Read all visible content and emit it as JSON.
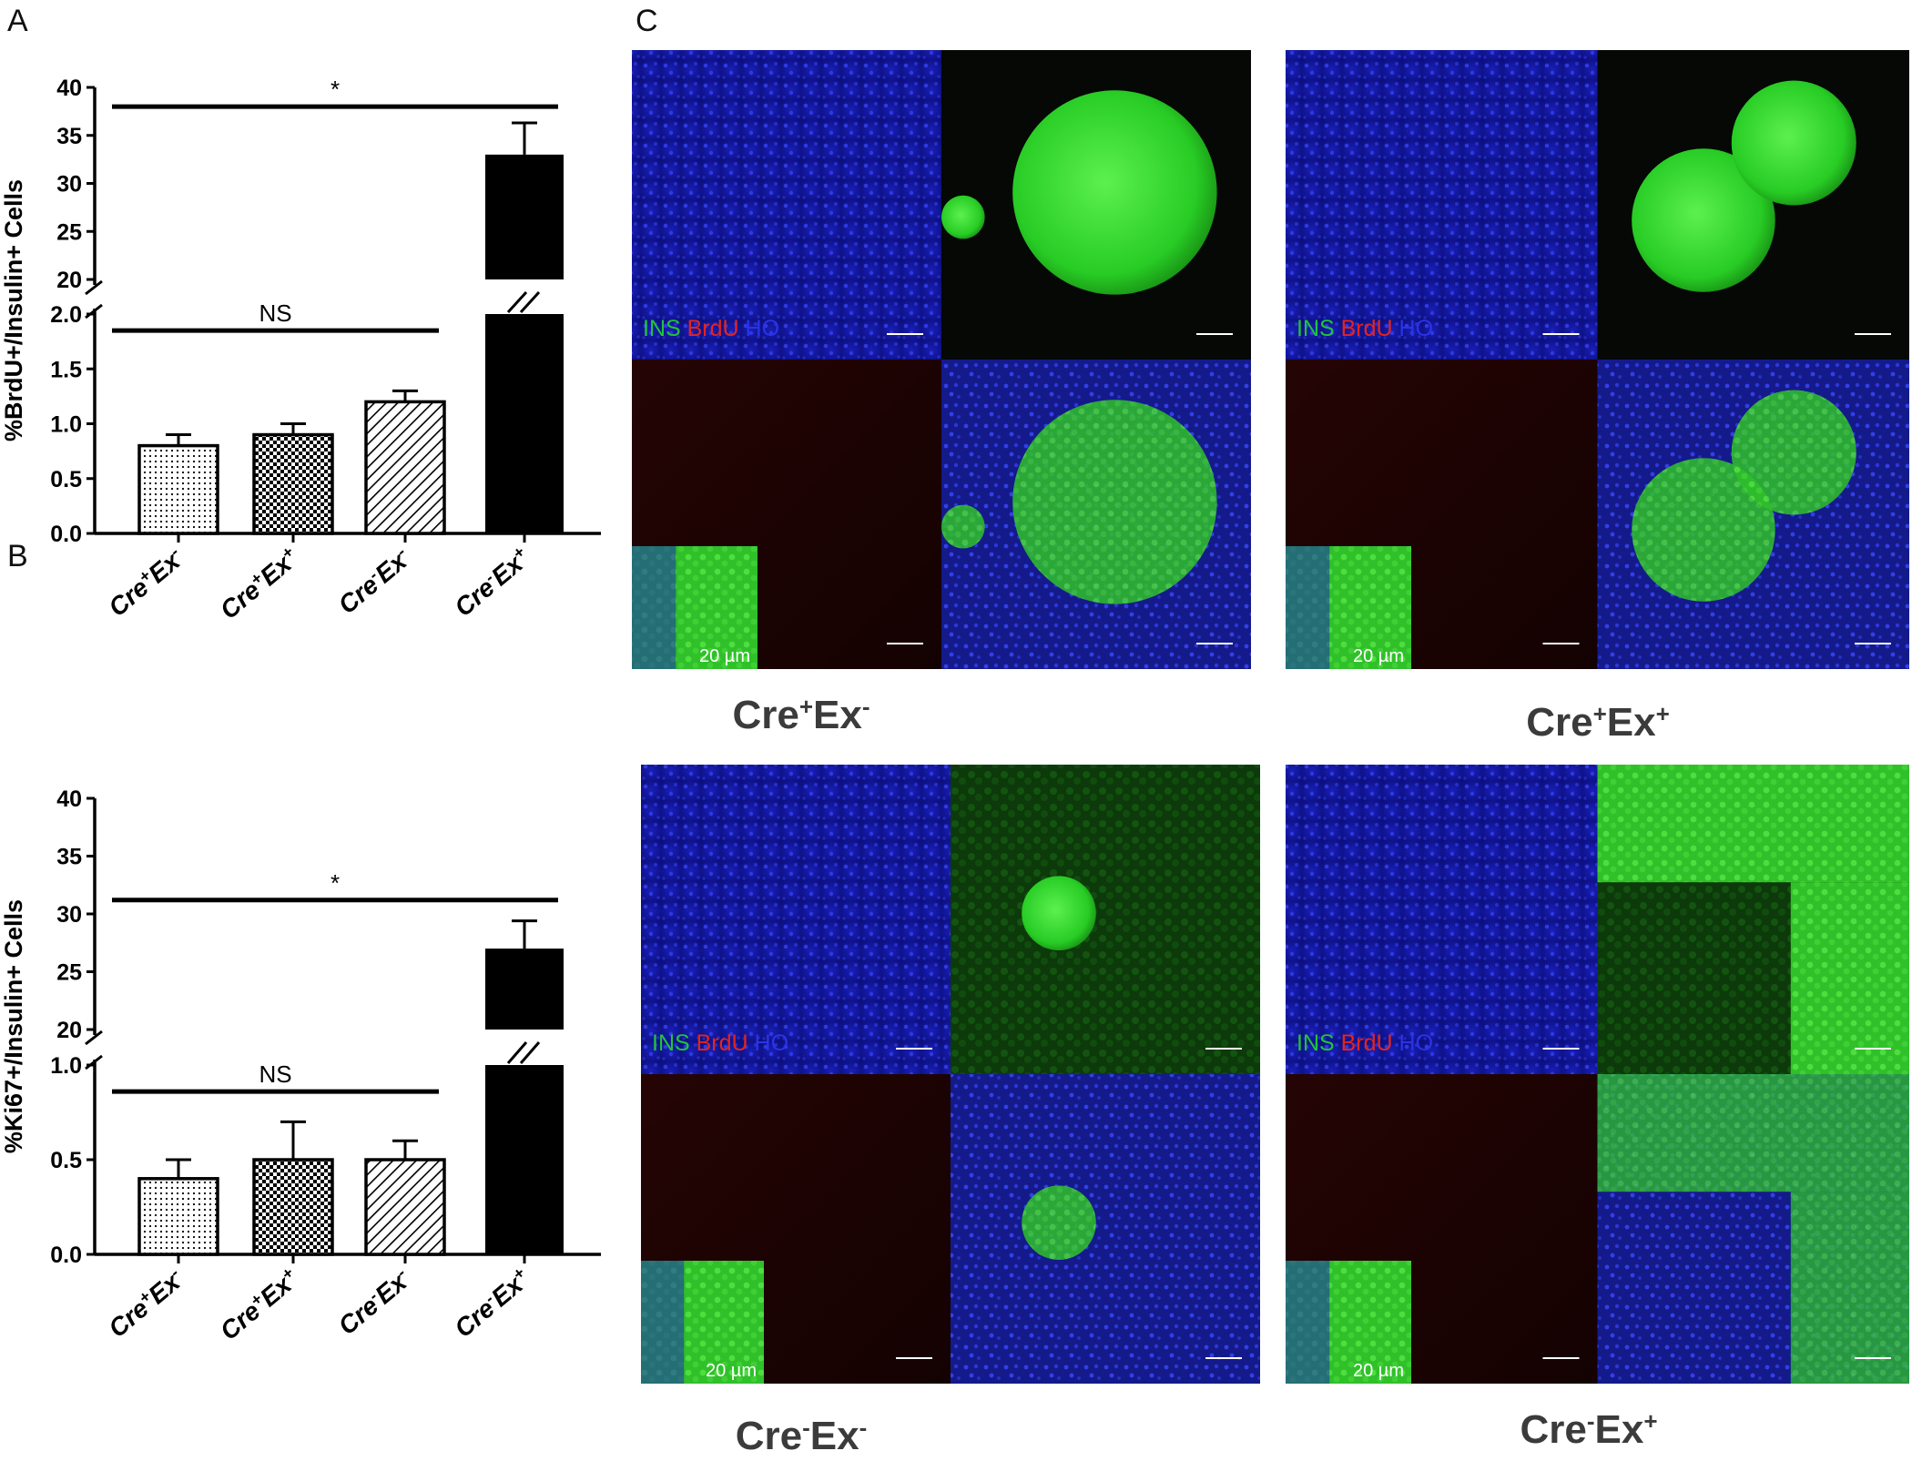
{
  "panel_labels": {
    "a": "A",
    "b": "B",
    "c": "C"
  },
  "chart_data": [
    {
      "panel": "A",
      "type": "bar",
      "ylabel": "%BrdU+/Insulin+ Cells",
      "categories": [
        {
          "base": "Cre",
          "sup1": "+",
          "mid": "Ex",
          "sup2": "-"
        },
        {
          "base": "Cre",
          "sup1": "+",
          "mid": "Ex",
          "sup2": "+"
        },
        {
          "base": "Cre",
          "sup1": "-",
          "mid": "Ex",
          "sup2": "-"
        },
        {
          "base": "Cre",
          "sup1": "-",
          "mid": "Ex",
          "sup2": "+"
        }
      ],
      "values": [
        0.8,
        0.9,
        1.2,
        33.0
      ],
      "errors": [
        0.1,
        0.1,
        0.1,
        3.3
      ],
      "bar_patterns": [
        "dots",
        "checker",
        "diagonal",
        "solid"
      ],
      "broken_axis": {
        "lower_range": [
          0,
          2.0
        ],
        "upper_range": [
          20,
          40
        ]
      },
      "lower_ticks": [
        "0.0",
        "0.5",
        "1.0",
        "1.5",
        "2.0"
      ],
      "upper_ticks": [
        "20",
        "25",
        "30",
        "35",
        "40"
      ],
      "significance": [
        {
          "label": "*",
          "from": 0,
          "to": 3,
          "y": 38
        },
        {
          "label": "NS",
          "from": 0,
          "to": 2,
          "y": 1.85
        }
      ]
    },
    {
      "panel": "B",
      "type": "bar",
      "ylabel": "%Ki67+/Insulin+ Cells",
      "categories": [
        {
          "base": "Cre",
          "sup1": "+",
          "mid": "Ex",
          "sup2": "-"
        },
        {
          "base": "Cre",
          "sup1": "+",
          "mid": "Ex",
          "sup2": "+"
        },
        {
          "base": "Cre",
          "sup1": "-",
          "mid": "Ex",
          "sup2": "-"
        },
        {
          "base": "Cre",
          "sup1": "-",
          "mid": "Ex",
          "sup2": "+"
        }
      ],
      "values": [
        0.4,
        0.5,
        0.5,
        27.0
      ],
      "errors": [
        0.1,
        0.2,
        0.1,
        2.4
      ],
      "bar_patterns": [
        "dots",
        "checker",
        "diagonal",
        "solid"
      ],
      "broken_axis": {
        "lower_range": [
          0,
          1.0
        ],
        "upper_range": [
          20,
          40
        ]
      },
      "lower_ticks": [
        "0.0",
        "0.5",
        "1.0"
      ],
      "upper_ticks": [
        "20",
        "25",
        "30",
        "35",
        "40"
      ],
      "significance": [
        {
          "label": "*",
          "from": 0,
          "to": 3,
          "y": 31.2
        },
        {
          "label": "NS",
          "from": 0,
          "to": 2,
          "y": 0.86
        }
      ]
    }
  ],
  "micrographs": {
    "marker_legend": [
      {
        "text": "INS",
        "color": "#22c33a"
      },
      {
        "text": "BrdU",
        "color": "#e3241f"
      },
      {
        "text": "HO",
        "color": "#2a33e8"
      }
    ],
    "inset_scale_label": "20 µm",
    "groups": [
      {
        "caption": {
          "base": "Cre",
          "sup1": "+",
          "mid": "Ex",
          "sup2": "-"
        }
      },
      {
        "caption": {
          "base": "Cre",
          "sup1": "+",
          "mid": "Ex",
          "sup2": "+"
        }
      },
      {
        "caption": {
          "base": "Cre",
          "sup1": "-",
          "mid": "Ex",
          "sup2": "-"
        }
      },
      {
        "caption": {
          "base": "Cre",
          "sup1": "-",
          "mid": "Ex",
          "sup2": "+"
        }
      }
    ]
  }
}
